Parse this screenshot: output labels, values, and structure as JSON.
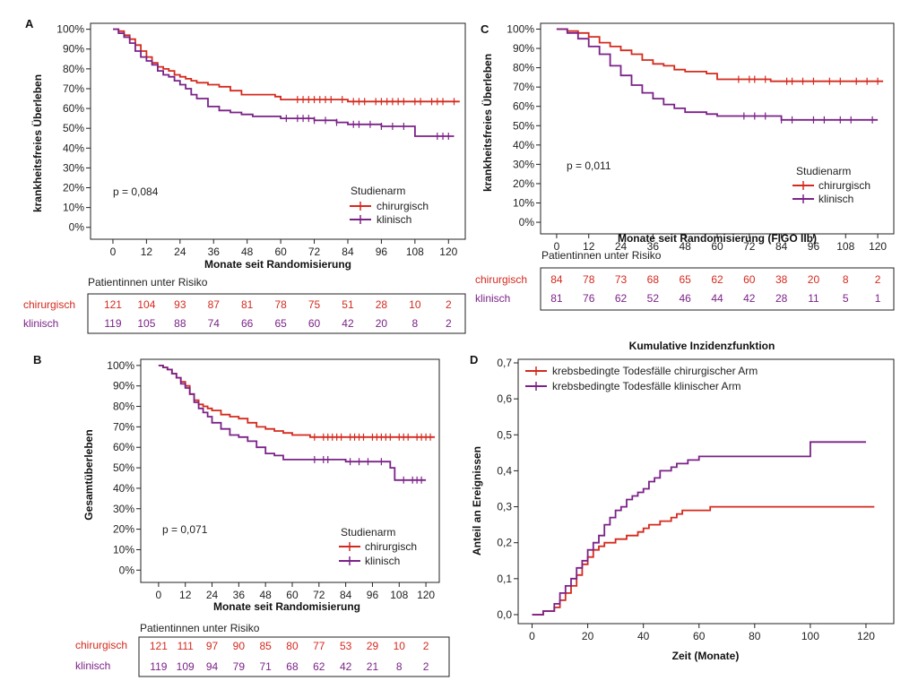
{
  "colors": {
    "red": "#d42a1e",
    "purple": "#7b2288",
    "border": "#222222"
  },
  "chart_data": [
    {
      "id": "A",
      "panel_label": "A",
      "type": "line",
      "ylabel": "krankheitsfreies Überleben",
      "xlabel": "Monate seit Randomisierung",
      "xlim": [
        -8,
        126
      ],
      "ylim": [
        -0.06,
        1.03
      ],
      "xticks": [
        "0",
        "12",
        "24",
        "36",
        "48",
        "60",
        "72",
        "84",
        "96",
        "108",
        "120"
      ],
      "yticks": [
        "0%",
        "10%",
        "20%",
        "30%",
        "40%",
        "50%",
        "60%",
        "70%",
        "80%",
        "90%",
        "100%"
      ],
      "pvalue": "p = 0,084",
      "legend_title": "Studienarm",
      "series": [
        {
          "name": "chirurgisch",
          "color": "#d42a1e",
          "x": [
            0,
            2,
            4,
            6,
            8,
            10,
            12,
            14,
            16,
            18,
            20,
            22,
            24,
            26,
            28,
            30,
            34,
            38,
            42,
            46,
            50,
            58,
            60,
            72,
            84,
            96,
            108,
            120,
            124
          ],
          "y": [
            1.0,
            0.99,
            0.97,
            0.95,
            0.92,
            0.89,
            0.86,
            0.83,
            0.81,
            0.8,
            0.79,
            0.77,
            0.76,
            0.75,
            0.74,
            0.73,
            0.72,
            0.71,
            0.69,
            0.67,
            0.67,
            0.66,
            0.645,
            0.645,
            0.635,
            0.635,
            0.635,
            0.635,
            0.635
          ],
          "censor": [
            66,
            68,
            70,
            72,
            74,
            76,
            78,
            82,
            86,
            88,
            90,
            94,
            96,
            98,
            100,
            102,
            104,
            108,
            110,
            114,
            116,
            118,
            122
          ]
        },
        {
          "name": "klinisch",
          "color": "#7b2288",
          "x": [
            0,
            2,
            4,
            6,
            8,
            10,
            12,
            14,
            16,
            18,
            20,
            22,
            24,
            26,
            28,
            30,
            34,
            38,
            42,
            46,
            50,
            56,
            60,
            72,
            80,
            84,
            96,
            106,
            108,
            120,
            122
          ],
          "y": [
            1.0,
            0.98,
            0.96,
            0.93,
            0.89,
            0.86,
            0.84,
            0.82,
            0.79,
            0.77,
            0.76,
            0.74,
            0.72,
            0.7,
            0.67,
            0.65,
            0.61,
            0.59,
            0.58,
            0.57,
            0.56,
            0.56,
            0.55,
            0.54,
            0.53,
            0.52,
            0.51,
            0.51,
            0.46,
            0.46,
            0.46
          ],
          "censor": [
            62,
            66,
            68,
            70,
            72,
            76,
            80,
            86,
            88,
            92,
            96,
            100,
            104,
            116,
            118,
            120
          ]
        }
      ],
      "risk_title": "Patientinnen unter Risiko",
      "risk": [
        {
          "name": "chirurgisch",
          "values": [
            "121",
            "104",
            "93",
            "87",
            "81",
            "78",
            "75",
            "51",
            "28",
            "10",
            "2"
          ]
        },
        {
          "name": "klinisch",
          "values": [
            "119",
            "105",
            "88",
            "74",
            "66",
            "65",
            "60",
            "42",
            "20",
            "8",
            "2"
          ]
        }
      ]
    },
    {
      "id": "B",
      "panel_label": "B",
      "type": "line",
      "ylabel": "Gesamtüberleben",
      "xlabel": "Monate seit Randomisierung",
      "xlim": [
        -8,
        126
      ],
      "ylim": [
        -0.06,
        1.03
      ],
      "xticks": [
        "0",
        "12",
        "24",
        "36",
        "48",
        "60",
        "72",
        "84",
        "96",
        "108",
        "120"
      ],
      "yticks": [
        "0%",
        "10%",
        "20%",
        "30%",
        "40%",
        "50%",
        "60%",
        "70%",
        "80%",
        "90%",
        "100%"
      ],
      "pvalue": "p = 0,071",
      "legend_title": "Studienarm",
      "series": [
        {
          "name": "chirurgisch",
          "color": "#d42a1e",
          "x": [
            0,
            2,
            4,
            6,
            8,
            10,
            12,
            14,
            16,
            18,
            20,
            22,
            24,
            28,
            32,
            36,
            40,
            44,
            48,
            52,
            56,
            60,
            64,
            68,
            72,
            84,
            96,
            108,
            124
          ],
          "y": [
            1.0,
            0.99,
            0.98,
            0.96,
            0.94,
            0.92,
            0.9,
            0.86,
            0.83,
            0.81,
            0.8,
            0.79,
            0.78,
            0.76,
            0.75,
            0.74,
            0.72,
            0.7,
            0.69,
            0.68,
            0.67,
            0.66,
            0.66,
            0.65,
            0.65,
            0.65,
            0.65,
            0.65,
            0.65
          ],
          "censor": [
            70,
            74,
            76,
            78,
            80,
            82,
            86,
            88,
            90,
            92,
            96,
            98,
            100,
            102,
            104,
            108,
            110,
            112,
            116,
            118,
            120,
            122
          ]
        },
        {
          "name": "klinisch",
          "color": "#7b2288",
          "x": [
            0,
            2,
            4,
            6,
            8,
            10,
            12,
            14,
            16,
            18,
            20,
            22,
            24,
            28,
            32,
            36,
            40,
            44,
            48,
            52,
            56,
            60,
            72,
            84,
            96,
            104,
            106,
            120
          ],
          "y": [
            1.0,
            0.99,
            0.98,
            0.96,
            0.94,
            0.91,
            0.89,
            0.86,
            0.82,
            0.79,
            0.77,
            0.75,
            0.72,
            0.69,
            0.66,
            0.65,
            0.63,
            0.6,
            0.57,
            0.56,
            0.54,
            0.54,
            0.54,
            0.53,
            0.53,
            0.5,
            0.44,
            0.44
          ],
          "censor": [
            70,
            74,
            76,
            86,
            90,
            94,
            100,
            110,
            114,
            116,
            118
          ]
        }
      ],
      "risk_title": "Patientinnen unter Risiko",
      "risk": [
        {
          "name": "chirurgisch",
          "values": [
            "121",
            "111",
            "97",
            "90",
            "85",
            "80",
            "77",
            "53",
            "29",
            "10",
            "2"
          ]
        },
        {
          "name": "klinisch",
          "values": [
            "119",
            "109",
            "94",
            "79",
            "71",
            "68",
            "62",
            "42",
            "21",
            "8",
            "2"
          ]
        }
      ]
    },
    {
      "id": "C",
      "panel_label": "C",
      "type": "line",
      "ylabel": "krankheitsfreies Überleben",
      "xlabel": "Monate seit Randomisierung (FIGO IIb)",
      "xlim": [
        -6,
        126
      ],
      "ylim": [
        -0.06,
        1.03
      ],
      "xticks": [
        "0",
        "12",
        "24",
        "36",
        "48",
        "60",
        "72",
        "84",
        "96",
        "108",
        "120"
      ],
      "yticks": [
        "0%",
        "10%",
        "20%",
        "30%",
        "40%",
        "50%",
        "60%",
        "70%",
        "80%",
        "90%",
        "100%"
      ],
      "pvalue": "p = 0,011",
      "legend_title": "Studienarm",
      "series": [
        {
          "name": "chirurgisch",
          "color": "#d42a1e",
          "x": [
            0,
            4,
            8,
            12,
            16,
            20,
            24,
            28,
            32,
            36,
            40,
            44,
            48,
            56,
            60,
            72,
            80,
            84,
            96,
            108,
            122
          ],
          "y": [
            1.0,
            0.99,
            0.98,
            0.96,
            0.93,
            0.91,
            0.89,
            0.87,
            0.84,
            0.82,
            0.81,
            0.79,
            0.78,
            0.77,
            0.74,
            0.74,
            0.73,
            0.73,
            0.73,
            0.73,
            0.73
          ],
          "censor": [
            68,
            72,
            74,
            78,
            86,
            88,
            92,
            96,
            102,
            106,
            112,
            116,
            120
          ]
        },
        {
          "name": "klinisch",
          "color": "#7b2288",
          "x": [
            0,
            4,
            8,
            12,
            16,
            20,
            24,
            28,
            32,
            36,
            40,
            44,
            48,
            56,
            60,
            72,
            84,
            96,
            108,
            120
          ],
          "y": [
            1.0,
            0.98,
            0.95,
            0.91,
            0.87,
            0.81,
            0.76,
            0.71,
            0.67,
            0.64,
            0.61,
            0.59,
            0.57,
            0.56,
            0.55,
            0.55,
            0.53,
            0.53,
            0.53,
            0.53
          ],
          "censor": [
            70,
            74,
            78,
            84,
            88,
            96,
            100,
            106,
            110,
            118
          ]
        }
      ],
      "risk_title": "Patientinnen unter Risiko",
      "risk": [
        {
          "name": "chirurgisch",
          "values": [
            "84",
            "78",
            "73",
            "68",
            "65",
            "62",
            "60",
            "38",
            "20",
            "8",
            "2"
          ]
        },
        {
          "name": "klinisch",
          "values": [
            "81",
            "76",
            "62",
            "52",
            "46",
            "44",
            "42",
            "28",
            "11",
            "5",
            "1"
          ]
        }
      ]
    },
    {
      "id": "D",
      "panel_label": "D",
      "type": "line",
      "title": "Kumulative Inzidenzfunktion",
      "ylabel": "Anteil an Ereignissen",
      "xlabel": "Zeit (Monate)",
      "xlim": [
        -5,
        130
      ],
      "ylim": [
        -0.025,
        0.71
      ],
      "xticks": [
        "0",
        "20",
        "40",
        "60",
        "80",
        "100",
        "120"
      ],
      "yticks": [
        "0,0",
        "0,1",
        "0,2",
        "0,3",
        "0,4",
        "0,5",
        "0,6",
        "0,7"
      ],
      "series": [
        {
          "name": "krebsbedingte Todesfälle chirurgischer Arm",
          "color": "#d42a1e",
          "x": [
            0,
            4,
            8,
            10,
            12,
            14,
            16,
            18,
            20,
            22,
            24,
            26,
            28,
            30,
            32,
            34,
            36,
            38,
            40,
            42,
            44,
            46,
            48,
            50,
            52,
            54,
            56,
            62,
            64,
            80,
            100,
            123
          ],
          "y": [
            0.0,
            0.01,
            0.02,
            0.04,
            0.06,
            0.08,
            0.11,
            0.14,
            0.16,
            0.18,
            0.19,
            0.2,
            0.2,
            0.21,
            0.21,
            0.22,
            0.22,
            0.23,
            0.24,
            0.25,
            0.25,
            0.26,
            0.26,
            0.27,
            0.28,
            0.29,
            0.29,
            0.29,
            0.3,
            0.3,
            0.3,
            0.3
          ]
        },
        {
          "name": "krebsbedingte Todesfälle klinischer Arm",
          "color": "#7b2288",
          "x": [
            0,
            4,
            8,
            10,
            12,
            14,
            16,
            18,
            20,
            22,
            24,
            26,
            28,
            30,
            32,
            34,
            36,
            38,
            40,
            42,
            44,
            46,
            48,
            50,
            52,
            54,
            56,
            60,
            64,
            80,
            99,
            100,
            120
          ],
          "y": [
            0.0,
            0.01,
            0.03,
            0.06,
            0.08,
            0.1,
            0.13,
            0.15,
            0.18,
            0.2,
            0.22,
            0.25,
            0.27,
            0.29,
            0.3,
            0.32,
            0.33,
            0.34,
            0.35,
            0.37,
            0.38,
            0.4,
            0.4,
            0.41,
            0.42,
            0.42,
            0.43,
            0.44,
            0.44,
            0.44,
            0.44,
            0.48,
            0.48
          ]
        }
      ]
    }
  ]
}
